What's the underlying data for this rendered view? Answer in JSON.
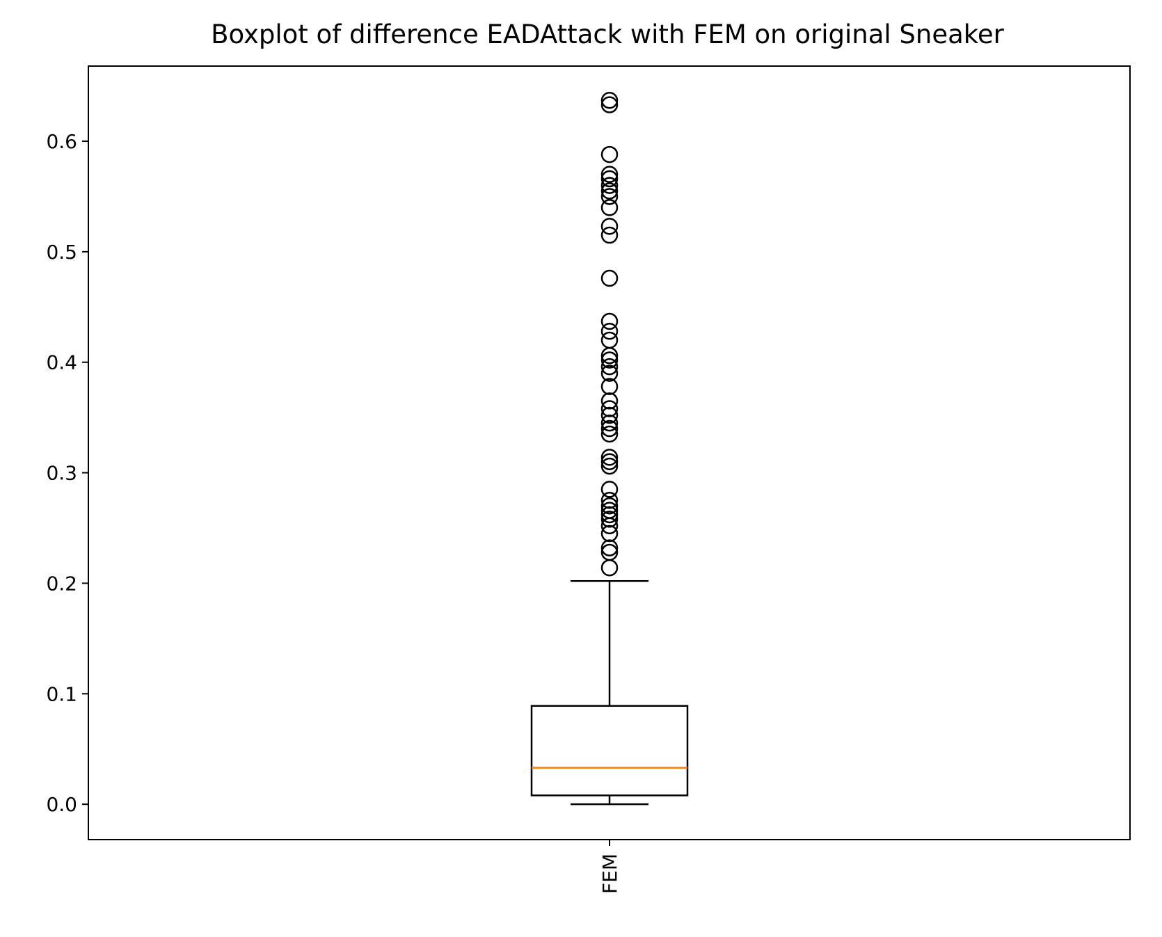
{
  "chart_data": {
    "type": "boxplot",
    "title": "Boxplot of difference EADAttack with FEM on original Sneaker",
    "xlabel": "",
    "ylabel": "",
    "categories": [
      "FEM"
    ],
    "ylim": [
      -0.032,
      0.668
    ],
    "yticks": [
      0.0,
      0.1,
      0.2,
      0.3,
      0.4,
      0.5,
      0.6
    ],
    "ytick_labels": [
      "0.0",
      "0.1",
      "0.2",
      "0.3",
      "0.4",
      "0.5",
      "0.6"
    ],
    "grid": false,
    "boxes": [
      {
        "name": "FEM",
        "whisker_low": 0.0,
        "q1": 0.008,
        "median": 0.033,
        "q3": 0.089,
        "whisker_high": 0.202,
        "outliers": [
          0.214,
          0.228,
          0.232,
          0.245,
          0.252,
          0.258,
          0.262,
          0.266,
          0.27,
          0.275,
          0.285,
          0.306,
          0.31,
          0.314,
          0.335,
          0.34,
          0.345,
          0.352,
          0.358,
          0.365,
          0.378,
          0.39,
          0.396,
          0.402,
          0.406,
          0.42,
          0.428,
          0.437,
          0.476,
          0.515,
          0.523,
          0.54,
          0.55,
          0.555,
          0.56,
          0.566,
          0.57,
          0.588,
          0.633,
          0.637
        ]
      }
    ],
    "colors": {
      "box": "#000000",
      "median": "#ff7f0e",
      "outlier": "#000000"
    }
  }
}
